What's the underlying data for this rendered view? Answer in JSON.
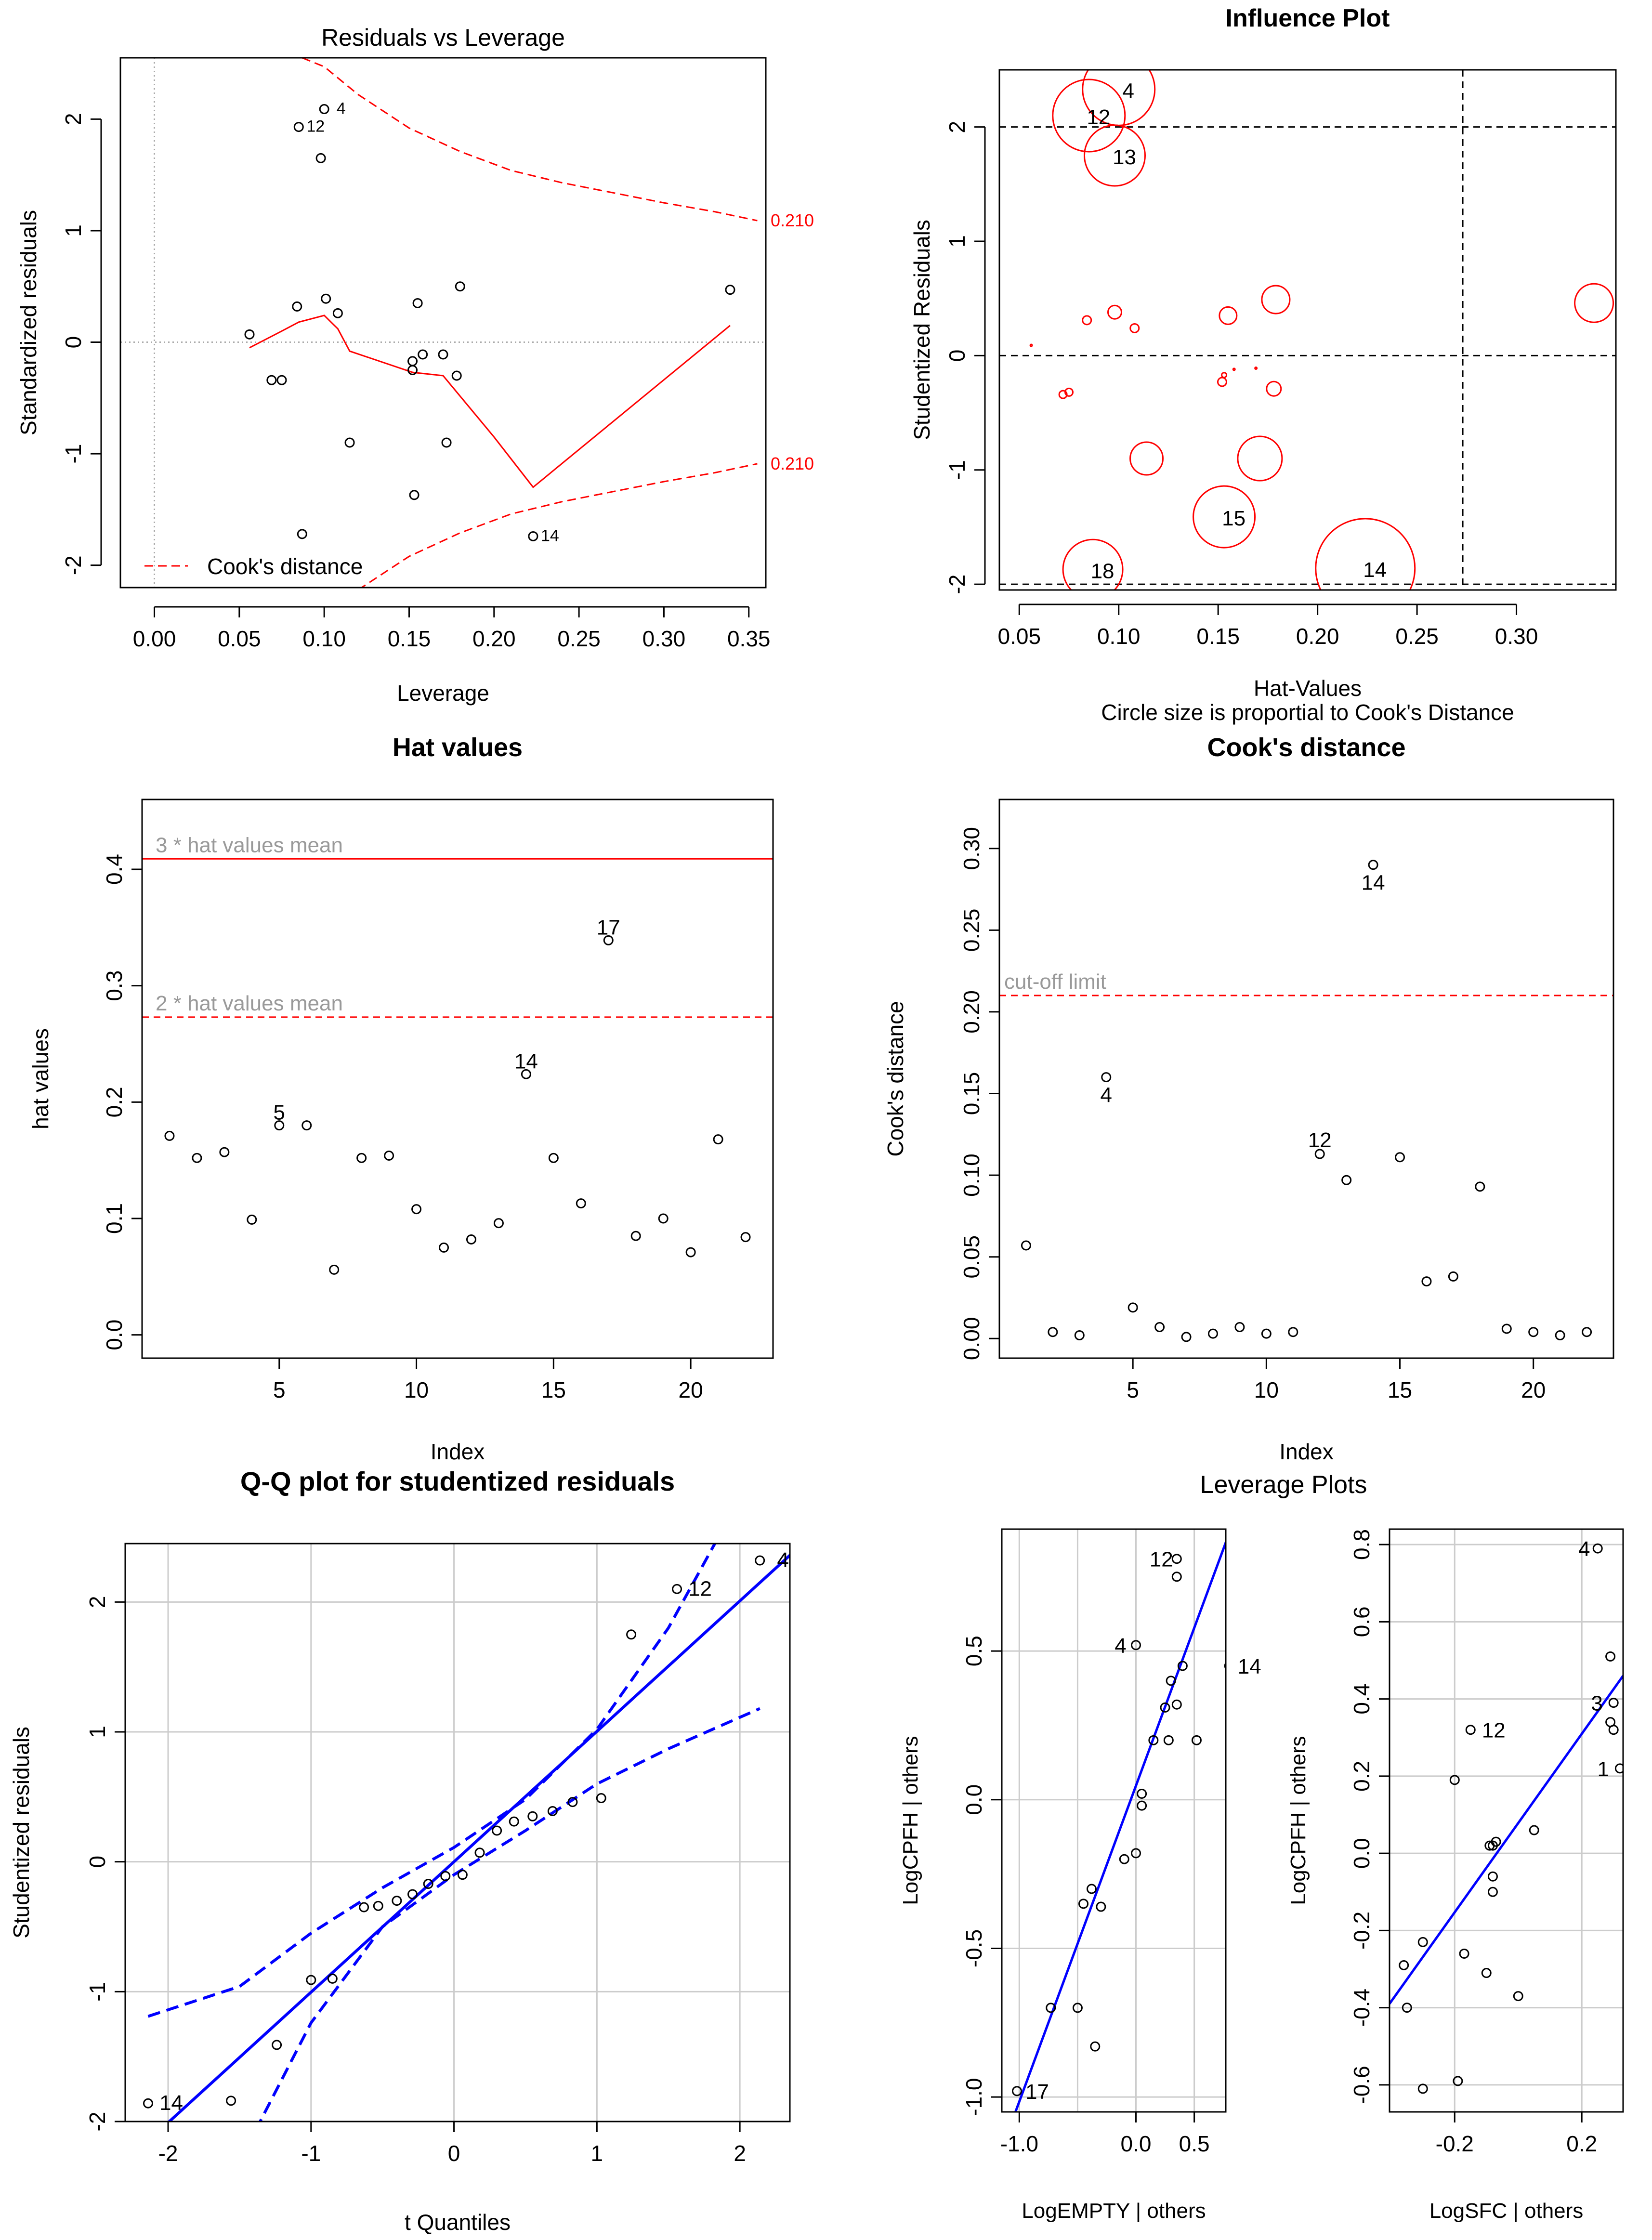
{
  "colors": {
    "red": "#ff0000",
    "blue": "#0000ff",
    "black": "#000000",
    "grid": "#cccccc",
    "gray_text": "#999999"
  },
  "chart_data": [
    {
      "id": "rvl",
      "type": "scatter",
      "title": "Residuals vs Leverage",
      "xlabel": "Leverage",
      "ylabel": "Standardized residuals",
      "xlim": [
        -0.02,
        0.36
      ],
      "ylim": [
        -2.2,
        2.55
      ],
      "x_ticks": [
        "0.00",
        "0.05",
        "0.10",
        "0.15",
        "0.20",
        "0.25",
        "0.30",
        "0.35"
      ],
      "y_ticks": [
        "-2",
        "-1",
        "0",
        "1",
        "2"
      ],
      "points": [
        [
          0.056,
          0.07
        ],
        [
          0.069,
          -0.34
        ],
        [
          0.075,
          -0.34
        ],
        [
          0.084,
          0.32
        ],
        [
          0.085,
          1.93
        ],
        [
          0.087,
          -1.72
        ],
        [
          0.098,
          1.65
        ],
        [
          0.1,
          2.09
        ],
        [
          0.101,
          0.39
        ],
        [
          0.108,
          0.26
        ],
        [
          0.115,
          -0.9
        ],
        [
          0.152,
          -0.25
        ],
        [
          0.152,
          -0.17
        ],
        [
          0.153,
          -1.37
        ],
        [
          0.155,
          0.35
        ],
        [
          0.158,
          -0.11
        ],
        [
          0.17,
          -0.11
        ],
        [
          0.172,
          -0.9
        ],
        [
          0.178,
          -0.3
        ],
        [
          0.18,
          0.5
        ],
        [
          0.223,
          -1.74
        ],
        [
          0.339,
          0.47
        ]
      ],
      "point_labels": [
        {
          "text": "12",
          "x": 0.085,
          "y": 1.93
        },
        {
          "text": "4",
          "x": 0.1,
          "y": 2.09
        },
        {
          "text": "14",
          "x": 0.223,
          "y": -1.74
        }
      ],
      "smooth_line": [
        [
          0.056,
          -0.05
        ],
        [
          0.075,
          0.1
        ],
        [
          0.085,
          0.18
        ],
        [
          0.1,
          0.24
        ],
        [
          0.108,
          0.12
        ],
        [
          0.115,
          -0.08
        ],
        [
          0.152,
          -0.27
        ],
        [
          0.17,
          -0.3
        ],
        [
          0.2,
          -0.85
        ],
        [
          0.223,
          -1.3
        ],
        [
          0.339,
          0.15
        ]
      ],
      "cooks_upper": [
        [
          0.087,
          2.55
        ],
        [
          0.1,
          2.47
        ],
        [
          0.12,
          2.22
        ],
        [
          0.15,
          1.92
        ],
        [
          0.18,
          1.71
        ],
        [
          0.21,
          1.54
        ],
        [
          0.24,
          1.43
        ],
        [
          0.27,
          1.34
        ],
        [
          0.3,
          1.25
        ],
        [
          0.33,
          1.17
        ],
        [
          0.355,
          1.09
        ]
      ],
      "cooks_lower": [
        [
          0.12,
          -2.22
        ],
        [
          0.15,
          -1.92
        ],
        [
          0.18,
          -1.71
        ],
        [
          0.21,
          -1.54
        ],
        [
          0.24,
          -1.43
        ],
        [
          0.27,
          -1.34
        ],
        [
          0.3,
          -1.25
        ],
        [
          0.33,
          -1.17
        ],
        [
          0.355,
          -1.09
        ]
      ],
      "cooks_label": "0.210",
      "legend": "Cook's distance"
    },
    {
      "id": "influence",
      "type": "scatter",
      "title": "Influence Plot",
      "xlabel": "Hat-Values",
      "xlabel2": "Circle size is proportial to Cook's Distance",
      "ylabel": "Studentized Residuals",
      "xlim": [
        0.04,
        0.35
      ],
      "ylim": [
        -2.05,
        2.5
      ],
      "x_ticks": [
        "0.05",
        "0.10",
        "0.15",
        "0.20",
        "0.25",
        "0.30"
      ],
      "y_ticks": [
        "-2",
        "-1",
        "0",
        "1",
        "2"
      ],
      "hlines": [
        2,
        0,
        -2
      ],
      "vline": 0.273,
      "bubbles": [
        [
          0.1,
          2.33,
          75
        ],
        [
          0.085,
          2.1,
          75
        ],
        [
          0.098,
          1.75,
          63
        ],
        [
          0.056,
          0.09,
          2
        ],
        [
          0.072,
          -0.34,
          8
        ],
        [
          0.075,
          -0.32,
          8
        ],
        [
          0.084,
          0.31,
          9
        ],
        [
          0.098,
          0.38,
          14
        ],
        [
          0.108,
          0.24,
          9
        ],
        [
          0.114,
          -0.9,
          34
        ],
        [
          0.152,
          -0.23,
          9
        ],
        [
          0.153,
          -0.17,
          5
        ],
        [
          0.155,
          0.35,
          18
        ],
        [
          0.158,
          -0.12,
          2
        ],
        [
          0.169,
          -0.11,
          2
        ],
        [
          0.171,
          -0.9,
          46
        ],
        [
          0.178,
          -0.29,
          15
        ],
        [
          0.179,
          0.49,
          29
        ],
        [
          0.339,
          0.46,
          40
        ],
        [
          0.153,
          -1.41,
          64
        ],
        [
          0.087,
          -1.87,
          62
        ],
        [
          0.224,
          -1.86,
          103
        ]
      ],
      "point_labels": [
        {
          "text": "4",
          "x": 0.1,
          "y": 2.33
        },
        {
          "text": "12",
          "x": 0.085,
          "y": 2.1
        },
        {
          "text": "13",
          "x": 0.098,
          "y": 1.75
        },
        {
          "text": "15",
          "x": 0.153,
          "y": -1.41
        },
        {
          "text": "18",
          "x": 0.087,
          "y": -1.87
        },
        {
          "text": "14",
          "x": 0.224,
          "y": -1.86
        }
      ]
    },
    {
      "id": "hat",
      "type": "scatter",
      "title": "Hat values",
      "xlabel": "Index",
      "ylabel": "hat values",
      "xlim": [
        0,
        23
      ],
      "ylim": [
        -0.02,
        0.46
      ],
      "x_ticks": [
        "5",
        "10",
        "15",
        "20"
      ],
      "y_ticks": [
        "0.0",
        "0.1",
        "0.2",
        "0.3",
        "0.4"
      ],
      "values": [
        0.171,
        0.152,
        0.157,
        0.099,
        0.18,
        0.18,
        0.056,
        0.152,
        0.154,
        0.108,
        0.075,
        0.082,
        0.096,
        0.224,
        0.152,
        0.113,
        0.339,
        0.085,
        0.1,
        0.071,
        0.168,
        0.084
      ],
      "ref_lines": [
        {
          "label": "3 * hat values mean",
          "y": 0.409,
          "style": "solid"
        },
        {
          "label": "2 * hat values mean",
          "y": 0.273,
          "style": "dashed"
        }
      ],
      "point_labels": [
        {
          "text": "5",
          "i": 5
        },
        {
          "text": "14",
          "i": 14
        },
        {
          "text": "17",
          "i": 17
        }
      ]
    },
    {
      "id": "cook",
      "type": "scatter",
      "title": "Cook's distance",
      "xlabel": "Index",
      "ylabel": "Cook's distance",
      "xlim": [
        0,
        23
      ],
      "ylim": [
        -0.012,
        0.33
      ],
      "x_ticks": [
        "5",
        "10",
        "15",
        "20"
      ],
      "y_ticks": [
        "0.00",
        "0.05",
        "0.10",
        "0.15",
        "0.20",
        "0.25",
        "0.30"
      ],
      "values": [
        0.057,
        0.004,
        0.002,
        0.16,
        0.019,
        0.007,
        0.001,
        0.003,
        0.007,
        0.003,
        0.004,
        0.113,
        0.097,
        0.29,
        0.111,
        0.035,
        0.038,
        0.093,
        0.006,
        0.004,
        0.002,
        0.004
      ],
      "ref_line": {
        "label": "cut-off limit",
        "y": 0.21
      },
      "point_labels": [
        {
          "text": "4",
          "i": 4
        },
        {
          "text": "12",
          "i": 12
        },
        {
          "text": "14",
          "i": 14
        }
      ]
    },
    {
      "id": "qq",
      "type": "scatter",
      "title": "Q-Q plot for studentized residuals",
      "xlabel": "t Quantiles",
      "ylabel": "Studentized residuals",
      "xlim": [
        -2.3,
        2.35
      ],
      "ylim": [
        -2.0,
        2.45
      ],
      "x_ticks": [
        "-2",
        "-1",
        "0",
        "1",
        "2"
      ],
      "y_ticks": [
        "-2",
        "-1",
        "0",
        "1",
        "2"
      ],
      "points": [
        [
          -2.14,
          -1.86
        ],
        [
          -1.56,
          -1.84
        ],
        [
          -1.24,
          -1.41
        ],
        [
          -1.0,
          -0.91
        ],
        [
          -0.85,
          -0.9
        ],
        [
          -0.63,
          -0.35
        ],
        [
          -0.53,
          -0.34
        ],
        [
          -0.4,
          -0.3
        ],
        [
          -0.29,
          -0.25
        ],
        [
          -0.18,
          -0.17
        ],
        [
          -0.06,
          -0.11
        ],
        [
          0.06,
          -0.1
        ],
        [
          0.18,
          0.07
        ],
        [
          0.3,
          0.24
        ],
        [
          0.42,
          0.31
        ],
        [
          0.55,
          0.35
        ],
        [
          0.69,
          0.39
        ],
        [
          0.83,
          0.46
        ],
        [
          1.03,
          0.49
        ],
        [
          1.24,
          1.75
        ],
        [
          1.56,
          2.1
        ],
        [
          2.14,
          2.32
        ]
      ],
      "fit_line": [
        [
          -2.4,
          -2.41
        ],
        [
          2.4,
          2.41
        ]
      ],
      "band_upper": [
        [
          -2.14,
          -1.19
        ],
        [
          -1.5,
          -0.96
        ],
        [
          -1.0,
          -0.55
        ],
        [
          -0.5,
          -0.2
        ],
        [
          0.0,
          0.11
        ],
        [
          0.5,
          0.48
        ],
        [
          1.0,
          1.02
        ],
        [
          1.5,
          1.8
        ],
        [
          1.7,
          2.2
        ],
        [
          1.9,
          2.6
        ]
      ],
      "band_lower": [
        [
          -1.45,
          -2.2
        ],
        [
          -1.0,
          -1.24
        ],
        [
          -0.5,
          -0.5
        ],
        [
          0.0,
          -0.1
        ],
        [
          0.5,
          0.24
        ],
        [
          1.0,
          0.6
        ],
        [
          1.5,
          0.87
        ],
        [
          2.14,
          1.18
        ]
      ],
      "point_labels": [
        {
          "text": "14",
          "x": -2.14,
          "y": -1.86
        },
        {
          "text": "12",
          "x": 1.56,
          "y": 2.1
        },
        {
          "text": "4",
          "x": 2.14,
          "y": 2.32
        }
      ]
    },
    {
      "id": "lev_empty",
      "type": "scatter",
      "title": "Leverage Plots",
      "xlabel": "LogEMPTY | others",
      "ylabel": "LogCPFH | others",
      "xlim": [
        -1.15,
        0.77
      ],
      "ylim": [
        -1.05,
        0.91
      ],
      "x_ticks": [
        "-1.0",
        "0.0",
        "0.5"
      ],
      "y_ticks": [
        "-1.0",
        "-0.5",
        "0.0",
        "0.5"
      ],
      "points": [
        [
          -1.02,
          -0.98
        ],
        [
          -0.73,
          -0.7
        ],
        [
          -0.5,
          -0.7
        ],
        [
          -0.45,
          -0.35
        ],
        [
          -0.38,
          -0.3
        ],
        [
          -0.3,
          -0.36
        ],
        [
          -0.35,
          -0.83
        ],
        [
          -0.1,
          -0.2
        ],
        [
          0.0,
          -0.18
        ],
        [
          0.05,
          -0.02
        ],
        [
          0.05,
          0.02
        ],
        [
          0.15,
          0.2
        ],
        [
          0.25,
          0.31
        ],
        [
          0.28,
          0.2
        ],
        [
          0.3,
          0.4
        ],
        [
          0.35,
          0.32
        ],
        [
          0.35,
          0.75
        ],
        [
          0.35,
          0.81
        ],
        [
          0.4,
          0.45
        ],
        [
          0.52,
          0.2
        ],
        [
          0.0,
          0.52
        ],
        [
          0.8,
          0.45
        ]
      ],
      "fit_line": [
        [
          -1.08,
          -1.1
        ],
        [
          0.85,
          0.95
        ]
      ],
      "point_labels": [
        {
          "text": "17",
          "x": -1.02,
          "y": -0.98
        },
        {
          "text": "4",
          "x": 0.0,
          "y": 0.52
        },
        {
          "text": "12",
          "x": 0.35,
          "y": 0.81
        },
        {
          "text": "14",
          "x": 0.8,
          "y": 0.45
        }
      ]
    },
    {
      "id": "lev_sfc",
      "type": "scatter",
      "title": "",
      "xlabel": "LogSFC | others",
      "ylabel": "LogCPFH | others",
      "xlim": [
        -0.405,
        0.33
      ],
      "ylim": [
        -0.67,
        0.84
      ],
      "x_ticks": [
        "-0.2",
        "0.2"
      ],
      "y_ticks": [
        "-0.6",
        "-0.4",
        "-0.2",
        "0.0",
        "0.2",
        "0.4",
        "0.6",
        "0.8"
      ],
      "points": [
        [
          -0.36,
          -0.29
        ],
        [
          -0.35,
          -0.4
        ],
        [
          -0.3,
          -0.23
        ],
        [
          -0.3,
          -0.61
        ],
        [
          -0.2,
          0.19
        ],
        [
          -0.19,
          -0.59
        ],
        [
          -0.17,
          -0.26
        ],
        [
          -0.15,
          0.32
        ],
        [
          -0.1,
          -0.31
        ],
        [
          -0.09,
          0.02
        ],
        [
          -0.08,
          0.02
        ],
        [
          -0.07,
          0.03
        ],
        [
          -0.08,
          -0.06
        ],
        [
          -0.08,
          -0.1
        ],
        [
          0.0,
          -0.37
        ],
        [
          0.05,
          0.06
        ],
        [
          0.25,
          0.79
        ],
        [
          0.29,
          0.51
        ],
        [
          0.3,
          0.39
        ],
        [
          0.29,
          0.34
        ],
        [
          0.3,
          0.32
        ],
        [
          0.32,
          0.22
        ]
      ],
      "fit_line": [
        [
          -0.405,
          -0.39
        ],
        [
          0.33,
          0.46
        ]
      ],
      "point_labels": [
        {
          "text": "4",
          "x": 0.25,
          "y": 0.79
        },
        {
          "text": "12",
          "x": -0.15,
          "y": 0.32
        },
        {
          "text": "3",
          "x": 0.29,
          "y": 0.39
        },
        {
          "text": "1",
          "x": 0.31,
          "y": 0.22
        }
      ]
    }
  ]
}
